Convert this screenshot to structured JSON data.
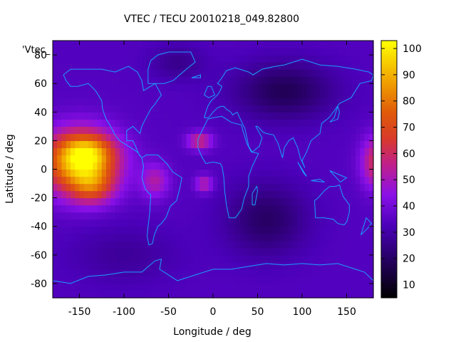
{
  "chart_data": {
    "type": "heatmap",
    "title": "VTEC / TECU 20010218_049.82800",
    "xlabel": "Longitude / deg",
    "ylabel": "Latitude / deg",
    "key_label": "'Vtec_",
    "xlim": [
      -180,
      180
    ],
    "ylim": [
      -90,
      90
    ],
    "xticks": [
      -150,
      -100,
      -50,
      0,
      50,
      100,
      150
    ],
    "yticks": [
      -80,
      -60,
      -40,
      -20,
      0,
      20,
      40,
      60,
      80
    ],
    "colorbar": {
      "min": 5,
      "max": 103,
      "ticks": [
        10,
        20,
        30,
        40,
        50,
        60,
        70,
        80,
        90,
        100
      ],
      "palette_stops": [
        {
          "f": 0.0,
          "color": "#000000"
        },
        {
          "f": 0.12,
          "color": "#1e004e"
        },
        {
          "f": 0.28,
          "color": "#4a00b8"
        },
        {
          "f": 0.4,
          "color": "#8a10e8"
        },
        {
          "f": 0.52,
          "color": "#c0208a"
        },
        {
          "f": 0.62,
          "color": "#d83a2a"
        },
        {
          "f": 0.72,
          "color": "#e05a0a"
        },
        {
          "f": 0.84,
          "color": "#f0a000"
        },
        {
          "f": 1.0,
          "color": "#ffff00"
        }
      ]
    },
    "field": {
      "grid_lon_step": 5,
      "grid_lat_step": 5,
      "background_value": 34,
      "features": [
        {
          "lon": -150,
          "lat": 5,
          "slon": 42,
          "slat": 22,
          "v": 58
        },
        {
          "lon": -140,
          "lat": 12,
          "slon": 28,
          "slat": 12,
          "v": 22
        },
        {
          "lon": -135,
          "lat": -12,
          "slon": 24,
          "slat": 12,
          "v": 22
        },
        {
          "lon": -65,
          "lat": -8,
          "slon": 16,
          "slat": 12,
          "v": 18
        },
        {
          "lon": -15,
          "lat": 20,
          "slon": 14,
          "slat": 6,
          "v": 25
        },
        {
          "lon": -10,
          "lat": -10,
          "slon": 10,
          "slat": 6,
          "v": 20
        },
        {
          "lon": 185,
          "lat": 5,
          "slon": 18,
          "slat": 18,
          "v": 30
        },
        {
          "lon": 80,
          "lat": 55,
          "slon": 55,
          "slat": 20,
          "v": -16
        },
        {
          "lon": 60,
          "lat": -35,
          "slon": 45,
          "slat": 25,
          "v": -14
        },
        {
          "lon": -40,
          "lat": 75,
          "slon": 30,
          "slat": 12,
          "v": -8
        },
        {
          "lon": -100,
          "lat": -60,
          "slon": 60,
          "slat": 20,
          "v": -6
        }
      ]
    },
    "coastline_color": "#1aa0ff"
  }
}
